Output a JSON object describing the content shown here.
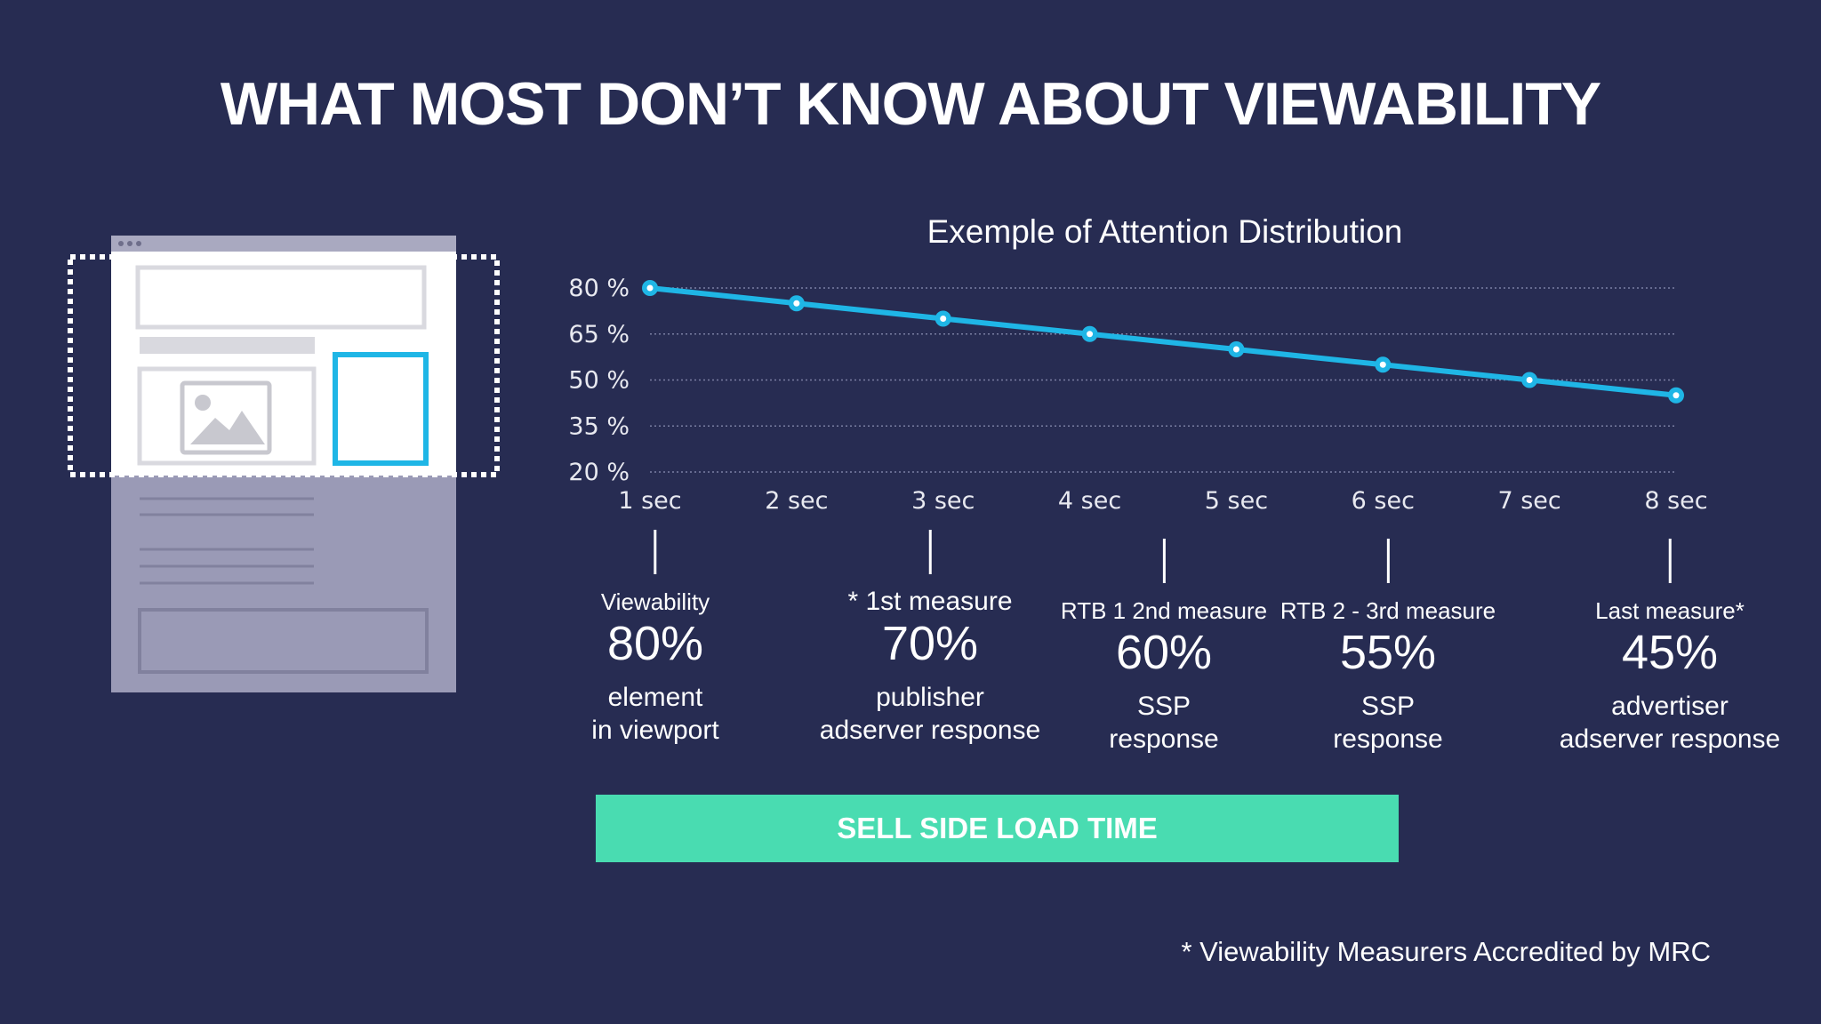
{
  "title": "WHAT MOST DON’T KNOW ABOUT VIEWABILITY",
  "chart_data": {
    "type": "line",
    "title": "Exemple of Attention Distribution",
    "categories": [
      "1 sec",
      "2 sec",
      "3 sec",
      "4 sec",
      "5 sec",
      "6 sec",
      "7 sec",
      "8 sec"
    ],
    "series": [
      {
        "values": [
          80,
          75,
          70,
          65,
          60,
          55,
          50,
          45
        ]
      }
    ],
    "yticks": [
      "80 %",
      "65 %",
      "50 %",
      "35 %",
      "20 %"
    ],
    "ytick_values": [
      80,
      65,
      50,
      35,
      20
    ],
    "ylim": [
      20,
      80
    ],
    "grid": true,
    "colors": {
      "line": "#1fb6e6",
      "grid": "#7a7fa3"
    }
  },
  "callouts": [
    {
      "label": "Viewability",
      "pct": "80%",
      "desc1": "element",
      "desc2": "in viewport"
    },
    {
      "label": "* 1st measure",
      "pct": "70%",
      "desc1": "publisher",
      "desc2": "adserver response"
    },
    {
      "label": "RTB 1 2nd measure",
      "pct": "60%",
      "desc1": "SSP",
      "desc2": "response"
    },
    {
      "label": "RTB 2 - 3rd measure",
      "pct": "55%",
      "desc1": "SSP",
      "desc2": "response"
    },
    {
      "label": "Last measure*",
      "pct": "45%",
      "desc1": "advertiser",
      "desc2": "adserver response"
    }
  ],
  "load_bar": "SELL SIDE LOAD TIME",
  "footnote": "* Viewability Measurers Accredited by MRC",
  "colors": {
    "background": "#272c52",
    "accent": "#1fb6e6",
    "bar": "#49dcb1"
  }
}
